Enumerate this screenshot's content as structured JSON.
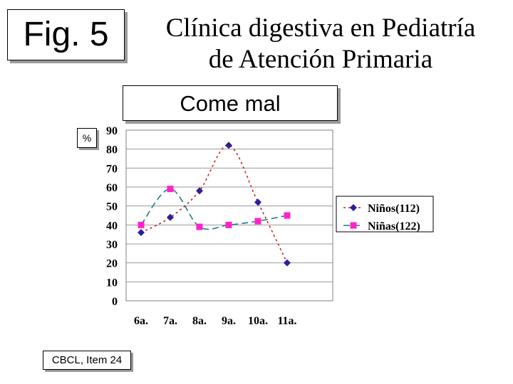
{
  "fig_label": "Fig. 5",
  "title_line1": "Clínica digestiva en Pediatría",
  "title_line2": "de Atención Primaria",
  "subtitle": "Come mal",
  "unit_label": "%",
  "source_label": "CBCL, Item 24",
  "chart_data": {
    "type": "line",
    "categories": [
      "6a.",
      "7a.",
      "8a.",
      "9a.",
      "10a.",
      "11a."
    ],
    "series": [
      {
        "name": "Niños(112)",
        "values": [
          36,
          44,
          58,
          82,
          52,
          20
        ],
        "color": "#cc2222",
        "marker_color": "#2b1f9c",
        "marker": "diamond"
      },
      {
        "name": "Niñas(122)",
        "values": [
          40,
          59,
          39,
          40,
          42,
          45
        ],
        "color": "#1f7a86",
        "marker_color": "#ff22cc",
        "marker": "square"
      }
    ],
    "yticks": [
      0,
      10,
      20,
      30,
      40,
      50,
      60,
      70,
      80,
      90
    ],
    "ylim": [
      0,
      90
    ],
    "grid": true,
    "legend_position": "right"
  }
}
